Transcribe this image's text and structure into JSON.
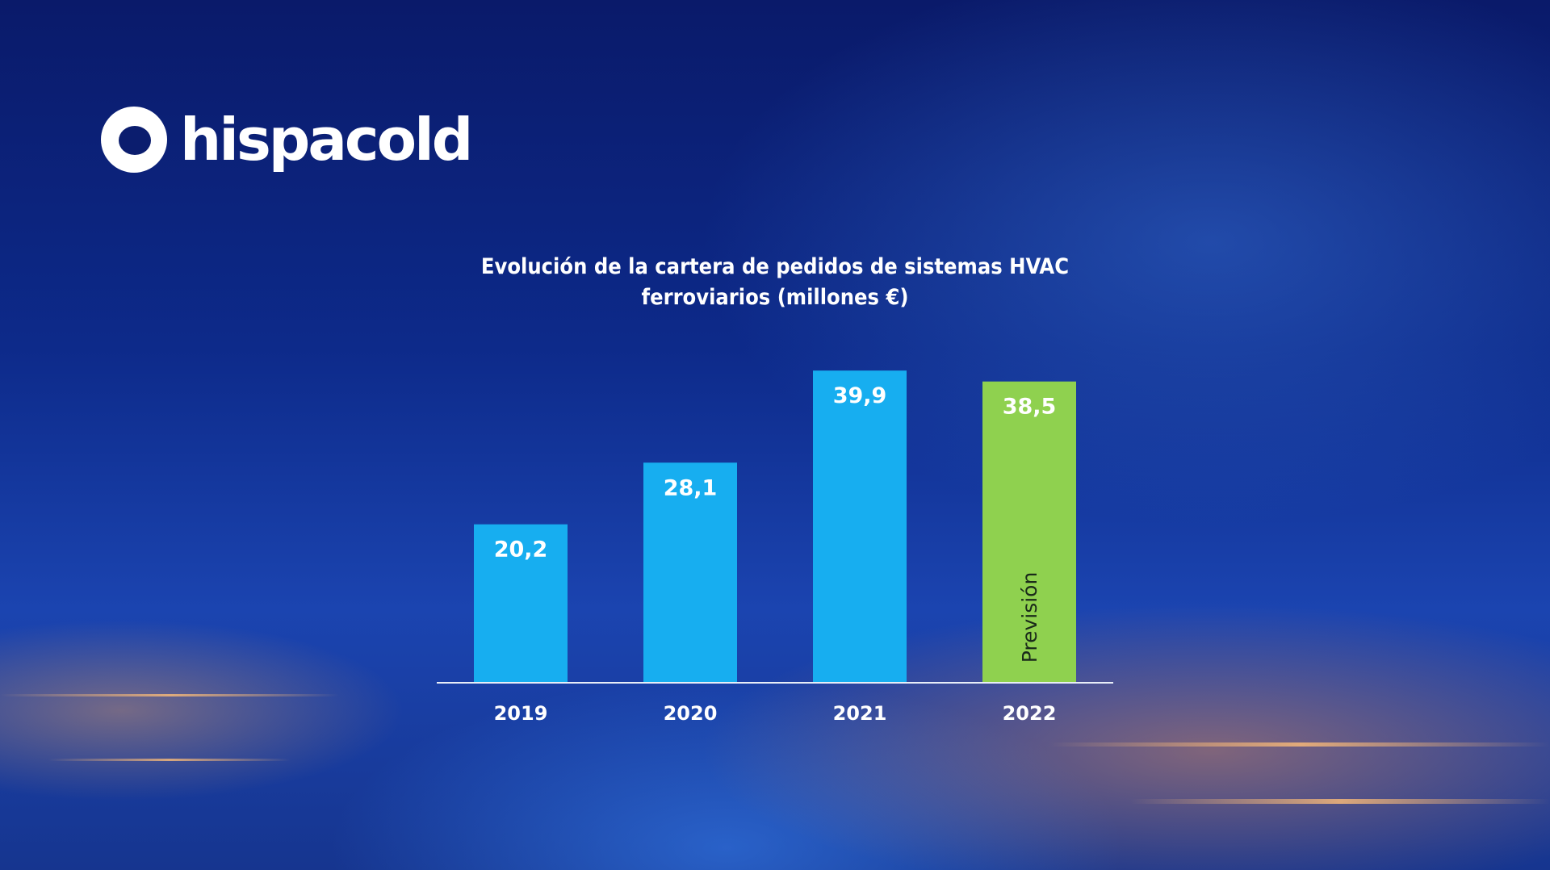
{
  "logo": {
    "text": "hispacold"
  },
  "chart_data": {
    "type": "bar",
    "title": "Evolución de la cartera de pedidos de sistemas HVAC ferroviarios (millones €)",
    "title_lines": [
      "Evolución de la cartera de pedidos de sistemas HVAC",
      "ferroviarios (millones €)"
    ],
    "categories": [
      "2019",
      "2020",
      "2021",
      "2022"
    ],
    "values": [
      20.2,
      28.1,
      39.9,
      38.5
    ],
    "value_labels": [
      "20,2",
      "28,1",
      "39,9",
      "38,5"
    ],
    "colors": [
      "#17aef0",
      "#17aef0",
      "#17aef0",
      "#8fd14f"
    ],
    "annotations": [
      {
        "category": "2022",
        "text": "Previsión"
      }
    ],
    "xlabel": "",
    "ylabel": "",
    "ylim": [
      0,
      40
    ],
    "grid": false
  }
}
